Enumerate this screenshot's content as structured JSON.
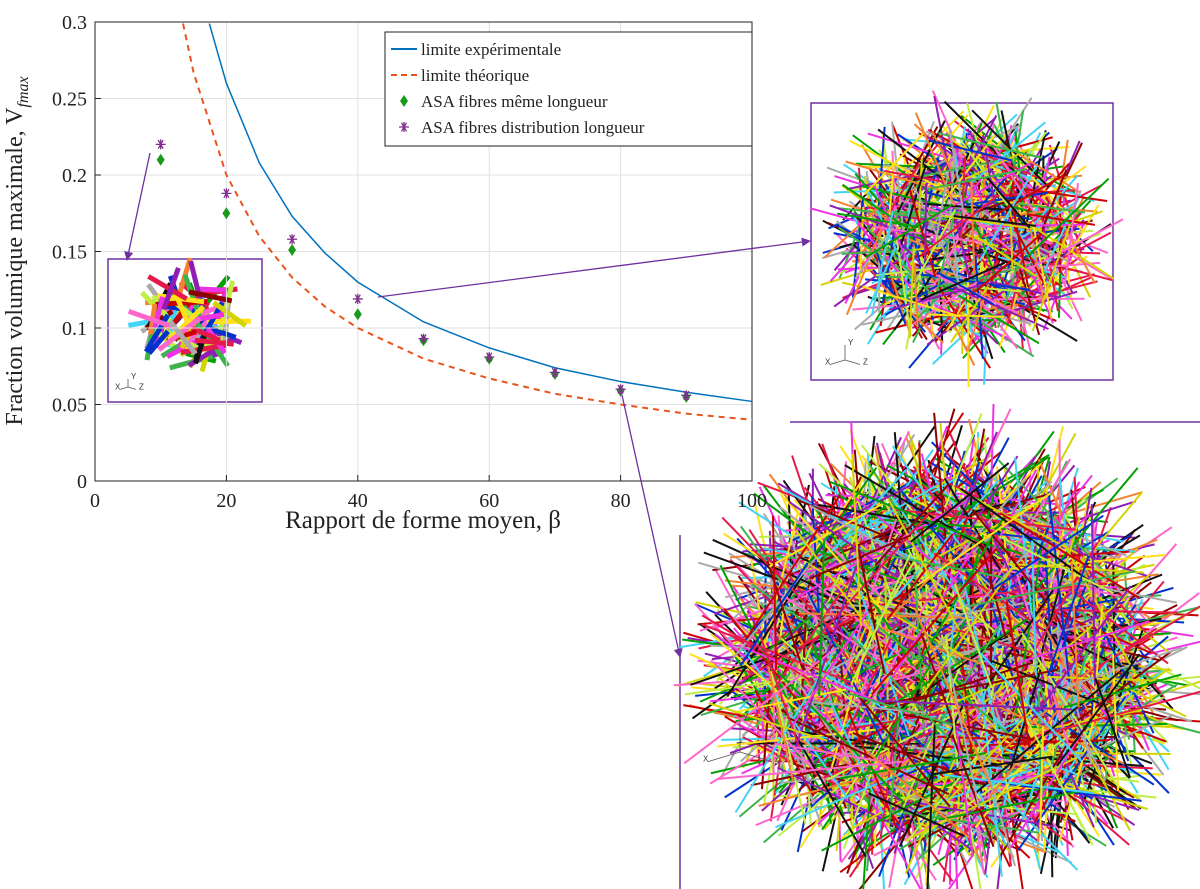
{
  "chart_data": {
    "type": "line",
    "xlabel": "Rapport de forme moyen, β",
    "ylabel": "Fraction volumique maximale, V",
    "ylabel_subscript": "fmax",
    "xlim": [
      0,
      100
    ],
    "xticks": [
      0,
      20,
      40,
      60,
      80,
      100
    ],
    "ylim": [
      0,
      0.3
    ],
    "yticks": [
      0,
      0.05,
      0.1,
      0.15,
      0.2,
      0.25,
      0.3
    ],
    "grid": true,
    "legend": "upper right",
    "series": [
      {
        "name": "limite expérimentale",
        "color": "#0072bd",
        "style": "solid",
        "x": [
          17.4,
          20,
          25,
          30,
          35,
          40,
          50,
          60,
          70,
          80,
          90,
          100
        ],
        "values": [
          0.299,
          0.26,
          0.208,
          0.173,
          0.149,
          0.13,
          0.104,
          0.087,
          0.074,
          0.065,
          0.058,
          0.052
        ]
      },
      {
        "name": "limite théorique",
        "color": "#e8541e",
        "style": "dashed",
        "x": [
          13.4,
          15,
          20,
          25,
          30,
          35,
          40,
          50,
          60,
          70,
          80,
          90,
          100
        ],
        "values": [
          0.299,
          0.267,
          0.2,
          0.16,
          0.133,
          0.114,
          0.1,
          0.08,
          0.067,
          0.057,
          0.05,
          0.044,
          0.04
        ]
      },
      {
        "name": "ASA fibres même longueur",
        "color": "#1a9a1a",
        "style": "diamond",
        "x": [
          10,
          20,
          30,
          40,
          50,
          60,
          70,
          80,
          90
        ],
        "values": [
          0.21,
          0.175,
          0.151,
          0.109,
          0.092,
          0.08,
          0.07,
          0.059,
          0.055
        ]
      },
      {
        "name": "ASA fibres distribution longueur",
        "color": "#7e2f8e",
        "style": "asterisk",
        "x": [
          10,
          20,
          30,
          40,
          50,
          60,
          70,
          80,
          90
        ],
        "values": [
          0.22,
          0.188,
          0.158,
          0.119,
          0.093,
          0.081,
          0.071,
          0.06,
          0.056
        ]
      }
    ],
    "inset_axis_labels": [
      "X",
      "Y",
      "Z"
    ]
  }
}
